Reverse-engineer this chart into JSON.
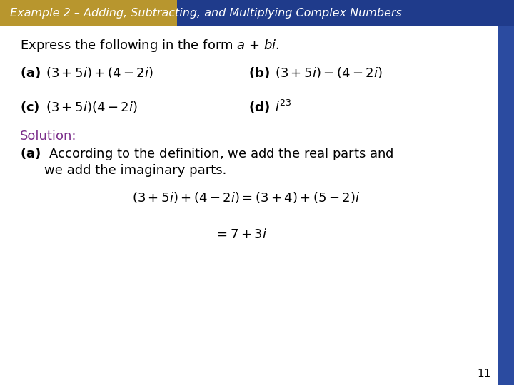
{
  "title": "Example 2 – Adding, Subtracting, and Multiplying Complex Numbers",
  "title_color": "#FFFFFF",
  "header_gold_color": "#B8962E",
  "header_blue_color": "#1F3B8B",
  "bg_color": "#FFFFFF",
  "right_bar_color": "#2B4BA0",
  "slide_number": "11",
  "body_text_color": "#000000",
  "solution_color": "#7B2D8B",
  "title_fontsize": 11.5,
  "body_fontsize": 13
}
